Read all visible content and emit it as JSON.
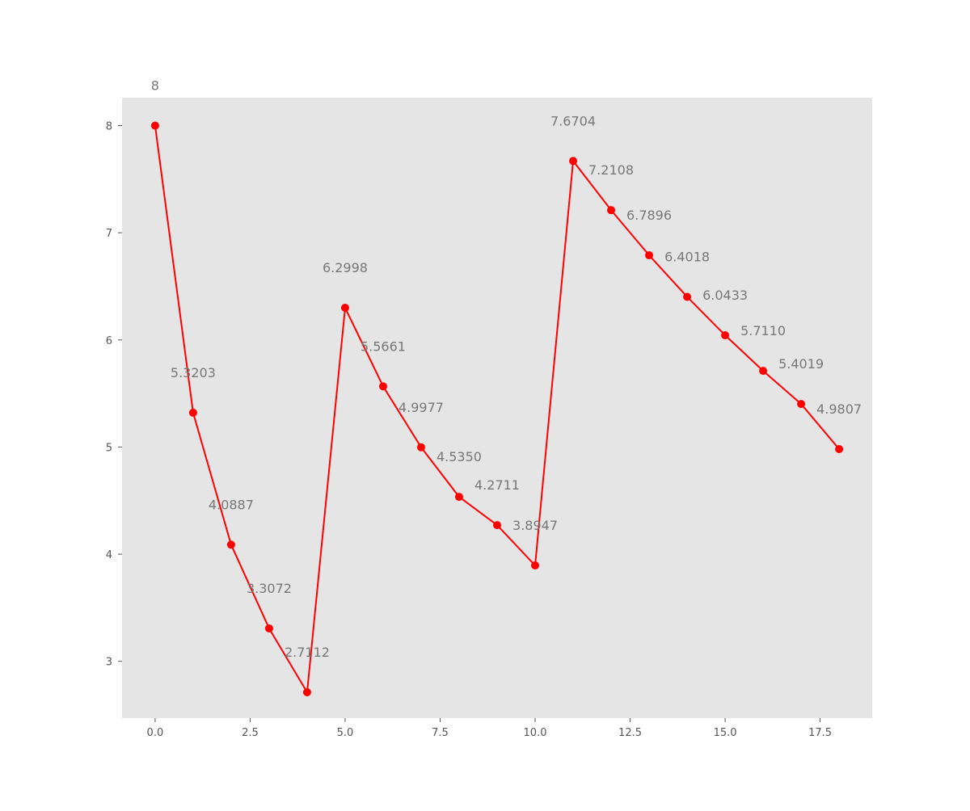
{
  "chart_data": {
    "type": "line",
    "title": "",
    "xlabel": "",
    "ylabel": "",
    "x": [
      0,
      1,
      2,
      3,
      4,
      5,
      6,
      7,
      8,
      9,
      10,
      11,
      12,
      13,
      14,
      15,
      16,
      17,
      18
    ],
    "series": [
      {
        "values": [
          8,
          5.3203,
          4.0887,
          3.3072,
          2.7112,
          6.2998,
          5.5661,
          4.9977,
          4.535,
          4.2711,
          3.8947,
          7.6704,
          7.2108,
          6.7896,
          6.4018,
          6.0433,
          5.711,
          5.4019,
          4.9807
        ],
        "color": "#ff0000",
        "marker": "circle"
      }
    ],
    "data_labels": [
      "8",
      "5.3203",
      "4.0887",
      "3.3072",
      "2.7112",
      "6.2998",
      "5.5661",
      "4.9977",
      "4.5350",
      "4.2711",
      "3.8947",
      "7.6704",
      "7.2108",
      "6.7896",
      "6.4018",
      "6.0433",
      "5.7110",
      "5.4019",
      "4.9807"
    ],
    "xlim": [
      -0.87,
      18.87
    ],
    "ylim": [
      2.47,
      8.26
    ],
    "x_ticks": [
      0,
      2.5,
      5,
      7.5,
      10,
      12.5,
      15,
      17.5
    ],
    "x_tick_labels": [
      "0.0",
      "2.5",
      "5.0",
      "7.5",
      "10.0",
      "12.5",
      "15.0",
      "17.5"
    ],
    "y_ticks": [
      3,
      4,
      5,
      6,
      7,
      8
    ],
    "y_tick_labels": [
      "3",
      "4",
      "5",
      "6",
      "7",
      "8"
    ],
    "grid": false,
    "legend": "none",
    "colors": {
      "plot_background": "#e5e5e5",
      "line": "#ff0000",
      "marker": "#ff0000",
      "tick_text": "#555555",
      "label_text": "#777777"
    }
  }
}
